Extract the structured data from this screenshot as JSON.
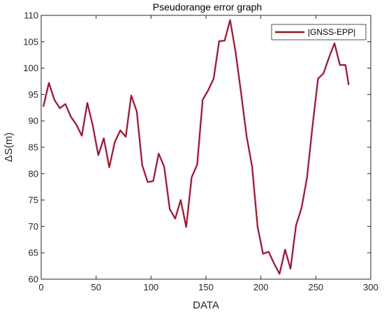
{
  "chart_data": {
    "type": "line",
    "title": "Pseudorange error graph",
    "xlabel": "DATA",
    "ylabel": "ΔS(m)",
    "xlim": [
      0,
      300
    ],
    "ylim": [
      60,
      110
    ],
    "xticks": [
      0,
      50,
      100,
      150,
      200,
      250,
      300
    ],
    "yticks": [
      60,
      65,
      70,
      75,
      80,
      85,
      90,
      95,
      100,
      105,
      110
    ],
    "grid": false,
    "legend_position": "top-right",
    "series": [
      {
        "name": "|GNSS-EPP|",
        "color": "#8b1a1a",
        "shadow_color": "#ff00ff",
        "x": [
          2,
          7,
          12,
          17,
          22,
          27,
          32,
          37,
          42,
          47,
          52,
          57,
          62,
          67,
          72,
          77,
          82,
          87,
          92,
          97,
          102,
          107,
          112,
          117,
          122,
          127,
          132,
          137,
          142,
          147,
          152,
          157,
          162,
          167,
          172,
          177,
          182,
          187,
          192,
          197,
          202,
          207,
          212,
          217,
          222,
          227,
          232,
          237,
          242,
          247,
          252,
          257,
          262,
          267,
          272,
          277,
          280
        ],
        "y": [
          92.7,
          97.2,
          94.0,
          92.4,
          93.2,
          90.8,
          89.3,
          87.2,
          93.4,
          89.1,
          83.5,
          86.7,
          81.2,
          86.0,
          88.2,
          87.0,
          94.8,
          91.8,
          81.6,
          78.4,
          78.6,
          83.8,
          81.3,
          73.3,
          71.5,
          75.0,
          69.9,
          79.3,
          81.7,
          94.0,
          95.8,
          98.0,
          105.1,
          105.2,
          109.1,
          103.0,
          95.3,
          87.1,
          81.3,
          70.0,
          64.8,
          65.2,
          63.0,
          61.0,
          65.6,
          62.0,
          70.2,
          73.5,
          79.2,
          89.0,
          98.0,
          99.0,
          102.0,
          104.7,
          100.6,
          100.6,
          96.8
        ]
      }
    ]
  }
}
